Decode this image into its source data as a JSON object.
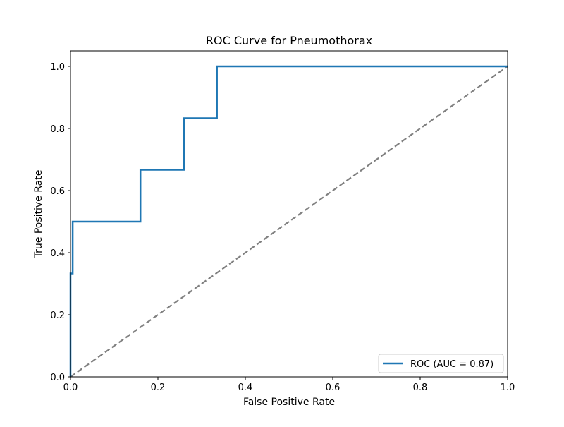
{
  "chart_data": {
    "type": "line",
    "title": "ROC Curve for Pneumothorax",
    "xlabel": "False Positive Rate",
    "ylabel": "True Positive Rate",
    "xlim": [
      0.0,
      1.0
    ],
    "ylim": [
      0.0,
      1.05
    ],
    "x_ticks": [
      "0.0",
      "0.2",
      "0.4",
      "0.6",
      "0.8",
      "1.0"
    ],
    "y_ticks": [
      "0.0",
      "0.2",
      "0.4",
      "0.6",
      "0.8",
      "1.0"
    ],
    "grid": false,
    "legend_position": "lower-right",
    "series": [
      {
        "name": "ROC (AUC = 0.87)",
        "color": "#1f77b4",
        "style": "solid",
        "x": [
          0.0,
          0.0,
          0.005,
          0.005,
          0.16,
          0.16,
          0.26,
          0.26,
          0.335,
          0.335,
          1.0
        ],
        "y": [
          0.0,
          0.333,
          0.333,
          0.5,
          0.5,
          0.667,
          0.667,
          0.833,
          0.833,
          1.0,
          1.0
        ]
      },
      {
        "color": "#808080",
        "style": "dashed",
        "x": [
          0.0,
          1.0
        ],
        "y": [
          0.0,
          1.0
        ]
      }
    ]
  }
}
